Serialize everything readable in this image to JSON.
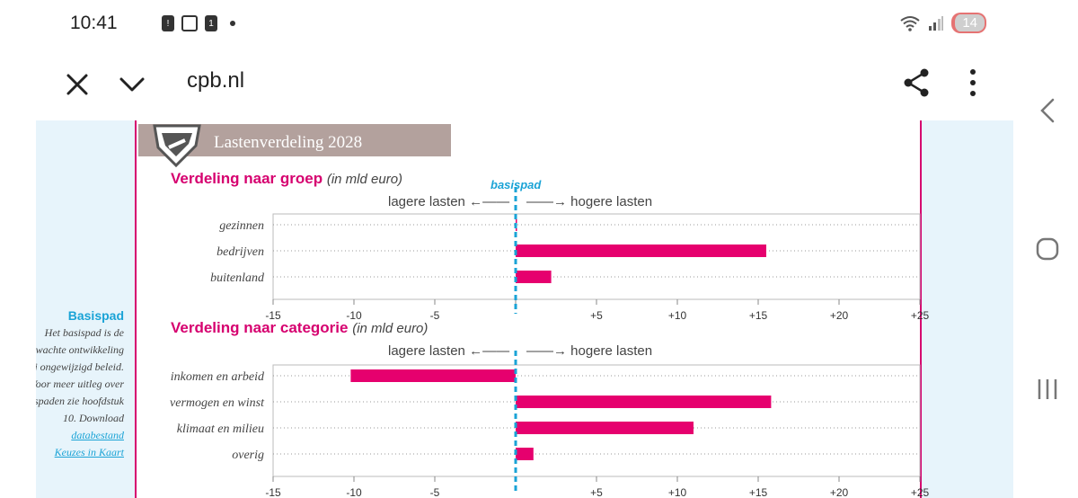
{
  "status_bar": {
    "time": "10:41",
    "calendar_badge": "1",
    "battery_level": "14"
  },
  "url_bar": {
    "url": "cpb.nl"
  },
  "infographic": {
    "header_title": "Lastenverdeling 2028",
    "basispad_label": "basispad",
    "lower_label": "lagere lasten",
    "higher_label": "hogere lasten"
  },
  "sidebar_note": {
    "title": "Basispad",
    "body": "Het basispad is de verwachte ontwikkeling bij ongewijzigd beleid. Voor meer uitleg over basispaden zie hoofdstuk 10. Download",
    "link1": "databestand",
    "link2": "Keuzes in Kaart"
  },
  "colors": {
    "bar": "#e6006e",
    "accent": "#d6006f",
    "baseline": "#1aa3d6",
    "header_band": "#b3a19d"
  },
  "chart_data": [
    {
      "type": "bar",
      "orientation": "horizontal",
      "title": "Verdeling naar groep",
      "unit": "(in mld euro)",
      "categories": [
        "gezinnen",
        "bedrijven",
        "buitenland"
      ],
      "values": [
        0,
        15.5,
        2.2
      ],
      "xlim": [
        -15,
        25
      ],
      "ticks": [
        "-15",
        "-10",
        "-5",
        "",
        "+5",
        "+10",
        "+15",
        "+20",
        "+25"
      ],
      "tick_values": [
        -15,
        -10,
        -5,
        0,
        5,
        10,
        15,
        20,
        25
      ],
      "grid": true
    },
    {
      "type": "bar",
      "orientation": "horizontal",
      "title": "Verdeling naar categorie",
      "unit": "(in mld euro)",
      "categories": [
        "inkomen en arbeid",
        "vermogen en winst",
        "klimaat en milieu",
        "overig"
      ],
      "values": [
        -10.2,
        15.8,
        11.0,
        1.1
      ],
      "xlim": [
        -15,
        25
      ],
      "ticks": [
        "-15",
        "-10",
        "-5",
        "",
        "+5",
        "+10",
        "+15",
        "+20",
        "+25"
      ],
      "tick_values": [
        -15,
        -10,
        -5,
        0,
        5,
        10,
        15,
        20,
        25
      ],
      "grid": true
    }
  ]
}
